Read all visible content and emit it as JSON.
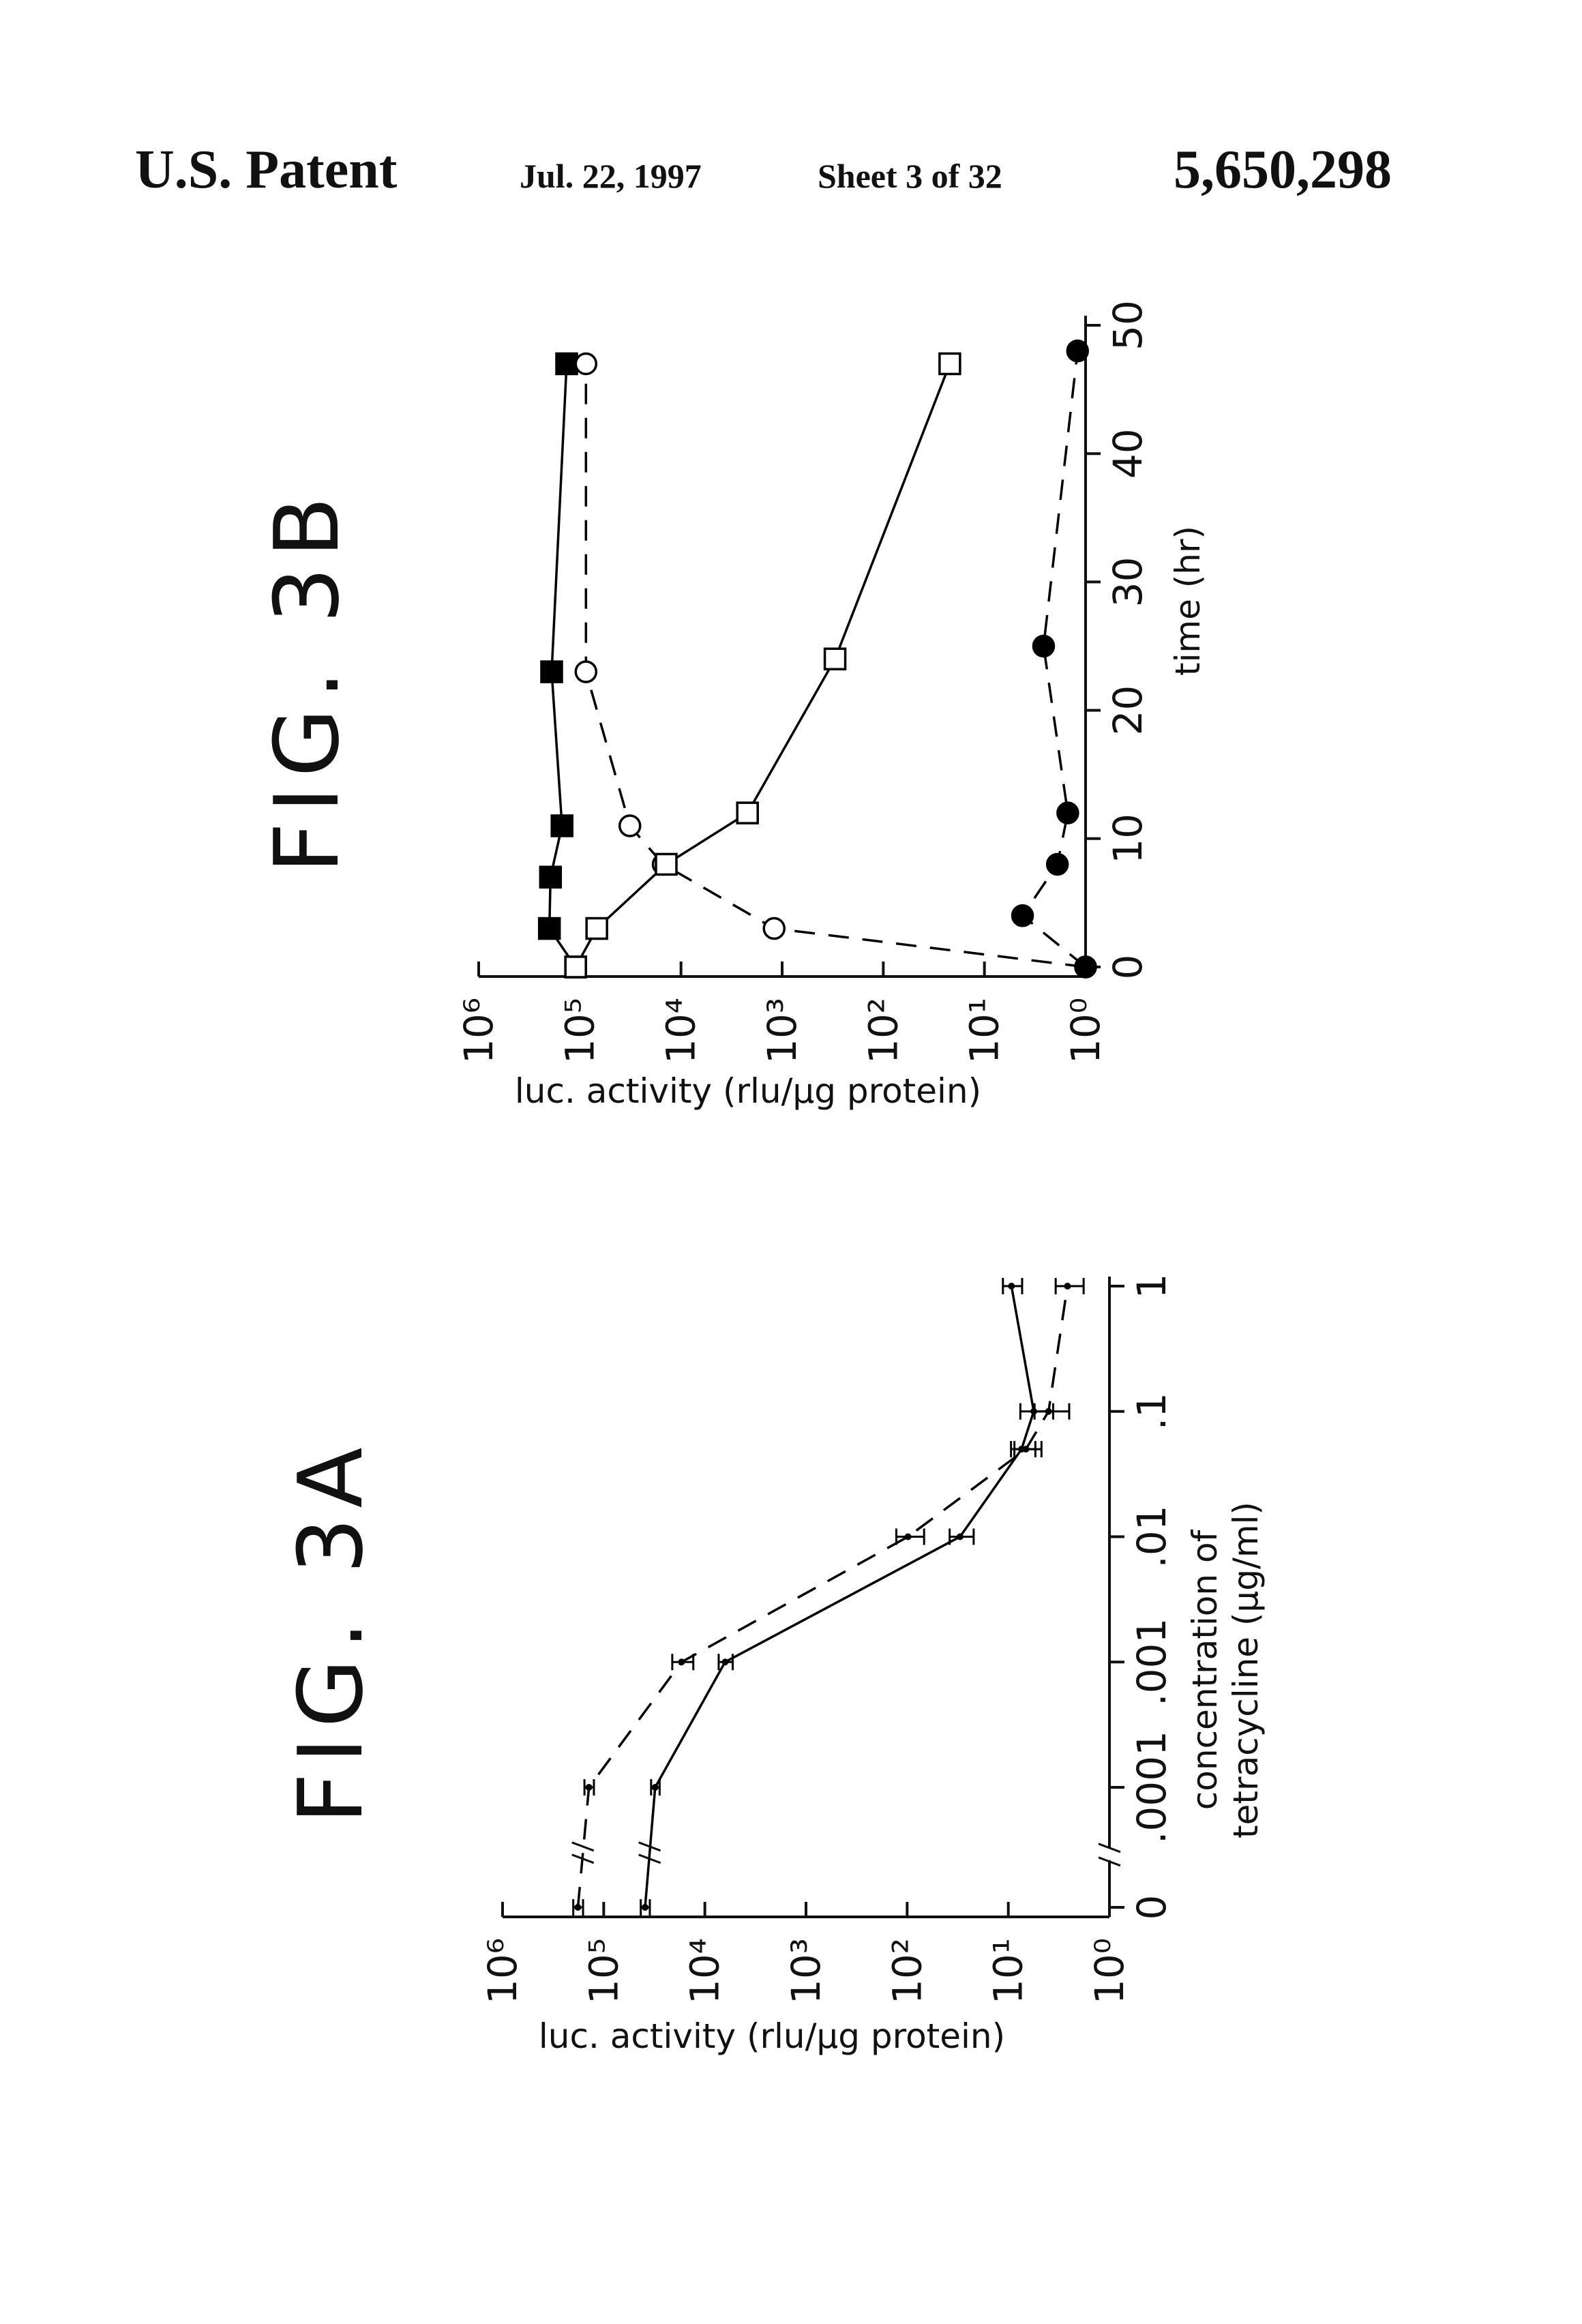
{
  "header": {
    "left": "U.S. Patent",
    "date": "Jul. 22, 1997",
    "sheet": "Sheet 3 of 32",
    "number": "5,650,298"
  },
  "chart_data": [
    {
      "type": "line",
      "title": "FIG. 3A",
      "ylabel": "luc. activity (rlu/µg protein)",
      "xlabel": [
        "concentration of",
        "tetracycline  (µg/ml)"
      ],
      "xscale": "log",
      "axis_break": true,
      "yscale": "log",
      "xlim": [
        0,
        1
      ],
      "ylim": [
        1,
        1000000
      ],
      "xticks": [
        0,
        {
          "value": 0.0001,
          "label": ".0001"
        },
        {
          "value": 0.001,
          "label": ".001"
        },
        {
          "value": 0.01,
          "label": ".01"
        },
        {
          "value": 0.1,
          "label": ".1"
        },
        1
      ],
      "yticks": [
        {
          "value": 1,
          "label": "10⁰"
        },
        {
          "value": 10,
          "label": "10¹"
        },
        {
          "value": 100,
          "label": "10²"
        },
        {
          "value": 1000,
          "label": "10³"
        },
        {
          "value": 10000,
          "label": "10⁴"
        },
        {
          "value": 100000,
          "label": "10⁵"
        },
        {
          "value": 1000000,
          "label": "10⁶"
        }
      ],
      "x": [
        0,
        0.0001,
        0.001,
        0.01,
        0.05,
        0.1,
        1
      ],
      "series": [
        {
          "color": "#000000",
          "dash": false,
          "marker": "dot",
          "filled": true,
          "values": [
            39000,
            31000,
            6300,
            30,
            7.4,
            5.6,
            9.3
          ],
          "errors": [
            4000,
            3000,
            1000,
            8,
            2,
            2,
            2
          ]
        },
        {
          "color": "#000000",
          "dash": true,
          "marker": "dot",
          "filled": true,
          "values": [
            180000,
            140000,
            17000,
            98,
            6.7,
            4,
            2.6
          ],
          "errors": [
            20000,
            15000,
            4000,
            30,
            2,
            1.5,
            0.8
          ]
        }
      ]
    },
    {
      "type": "line",
      "title": "FIG. 3B",
      "ylabel": "luc. activity (rlu/µg protein)",
      "xlabel": "time (hr)",
      "xscale": "linear",
      "yscale": "log",
      "xlim": [
        0,
        50
      ],
      "ylim": [
        1,
        1000000
      ],
      "xticks": [
        0,
        10,
        20,
        30,
        40,
        50
      ],
      "yticks": [
        {
          "value": 1,
          "label": "10⁰"
        },
        {
          "value": 10,
          "label": "10¹"
        },
        {
          "value": 100,
          "label": "10²"
        },
        {
          "value": 1000,
          "label": "10³"
        },
        {
          "value": 10000,
          "label": "10⁴"
        },
        {
          "value": 100000,
          "label": "10⁵"
        },
        {
          "value": 1000000,
          "label": "10⁶"
        }
      ],
      "series": [
        {
          "color": "#000000",
          "dash": false,
          "marker": "square",
          "filled": true,
          "x": [
            0,
            3,
            7,
            11,
            23,
            47
          ],
          "values": [
            110000,
            200000,
            195000,
            150000,
            190000,
            135000
          ]
        },
        {
          "color": "#000000",
          "dash": true,
          "marker": "circle",
          "filled": false,
          "x": [
            0,
            3,
            8,
            11,
            23,
            47
          ],
          "values": [
            1,
            1200,
            15000,
            32000,
            87000,
            87000
          ]
        },
        {
          "color": "#000000",
          "dash": false,
          "marker": "square",
          "filled": false,
          "x": [
            0,
            3,
            8,
            12,
            24,
            47
          ],
          "values": [
            110000,
            68000,
            14000,
            2200,
            300,
            22
          ]
        },
        {
          "color": "#000000",
          "dash": true,
          "marker": "circle",
          "filled": true,
          "x": [
            0,
            4,
            8,
            12,
            25,
            48
          ],
          "values": [
            1,
            4.2,
            1.9,
            1.5,
            2.6,
            1.2
          ]
        }
      ]
    }
  ]
}
